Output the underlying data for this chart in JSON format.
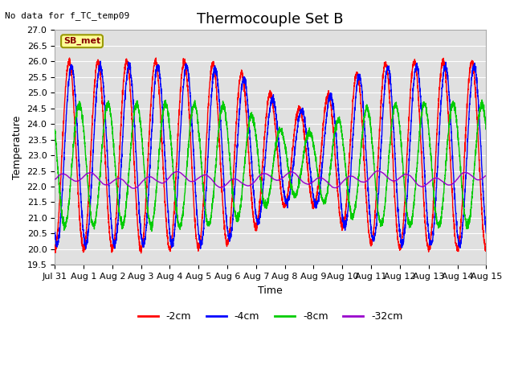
{
  "title": "Thermocouple Set B",
  "no_data_text": "No data for f_TC_temp09",
  "xlabel": "Time",
  "ylabel": "Temperature",
  "ylim": [
    19.5,
    27.0
  ],
  "yticks": [
    19.5,
    20.0,
    20.5,
    21.0,
    21.5,
    22.0,
    22.5,
    23.0,
    23.5,
    24.0,
    24.5,
    25.0,
    25.5,
    26.0,
    26.5,
    27.0
  ],
  "xtick_labels": [
    "Jul 31",
    "Aug 1",
    "Aug 2",
    "Aug 3",
    "Aug 4",
    "Aug 5",
    "Aug 6",
    "Aug 7",
    "Aug 8",
    "Aug 9",
    "Aug 10",
    "Aug 11",
    "Aug 12",
    "Aug 13",
    "Aug 14",
    "Aug 15"
  ],
  "series_order": [
    "-2cm",
    "-4cm",
    "-8cm",
    "-32cm"
  ],
  "series": {
    "-2cm": {
      "color": "#ff0000",
      "lw": 1.0
    },
    "-4cm": {
      "color": "#0000ff",
      "lw": 1.0
    },
    "-8cm": {
      "color": "#00cc00",
      "lw": 1.0
    },
    "-32cm": {
      "color": "#9900cc",
      "lw": 1.0
    }
  },
  "legend_box_facecolor": "#ffff99",
  "legend_box_edgecolor": "#999900",
  "legend_box_text": "SB_met",
  "legend_box_text_color": "#880000",
  "bg_color": "#e0e0e0",
  "grid_color": "#ffffff",
  "title_fontsize": 13,
  "axis_fontsize": 9,
  "tick_fontsize": 8
}
